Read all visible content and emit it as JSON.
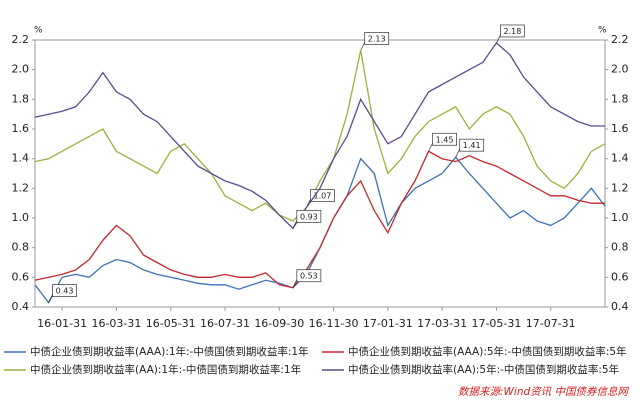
{
  "chart_data": {
    "type": "line",
    "y_unit": "%",
    "categories": [
      null,
      null,
      "16-01-31",
      null,
      null,
      null,
      "16-03-31",
      null,
      null,
      null,
      "16-05-31",
      null,
      null,
      null,
      "16-07-31",
      null,
      null,
      null,
      "16-09-30",
      null,
      null,
      null,
      "16-11-30",
      null,
      null,
      null,
      "17-01-31",
      null,
      null,
      null,
      "17-03-31",
      null,
      null,
      null,
      "17-05-31",
      null,
      null,
      null,
      "17-07-31",
      null,
      null,
      null,
      null
    ],
    "ylim": [
      0.4,
      2.2
    ],
    "yticks": [
      0.4,
      0.6,
      0.8,
      1.0,
      1.2,
      1.4,
      1.6,
      1.8,
      2.0,
      2.2
    ],
    "series": [
      {
        "name": "中债企业债到期收益率(AAA):1年:-中债国债到期收益率:1年",
        "color": "#3d72b4",
        "values": [
          0.55,
          0.43,
          0.6,
          0.62,
          0.6,
          0.68,
          0.72,
          0.7,
          0.65,
          0.62,
          0.6,
          0.58,
          0.56,
          0.55,
          0.55,
          0.52,
          0.55,
          0.58,
          0.56,
          0.53,
          0.62,
          0.8,
          1.0,
          1.15,
          1.4,
          1.3,
          0.95,
          1.1,
          1.2,
          1.25,
          1.3,
          1.41,
          1.3,
          1.2,
          1.1,
          1.0,
          1.05,
          0.98,
          0.95,
          1.0,
          1.1,
          1.2,
          1.08
        ],
        "value_labels": [
          null,
          "0.43",
          null,
          null,
          null,
          null,
          null,
          null,
          null,
          null,
          null,
          null,
          null,
          null,
          null,
          null,
          null,
          null,
          null,
          null,
          null,
          null,
          null,
          null,
          null,
          null,
          null,
          null,
          null,
          null,
          null,
          "1.41",
          null,
          null,
          null,
          null,
          null,
          null,
          null,
          null,
          null,
          null,
          null
        ]
      },
      {
        "name": "中债企业债到期收益率(AAA):5年:-中债国债到期收益率:5年",
        "color": "#c3282e",
        "values": [
          0.58,
          0.6,
          0.62,
          0.65,
          0.72,
          0.85,
          0.95,
          0.88,
          0.75,
          0.7,
          0.65,
          0.62,
          0.6,
          0.6,
          0.62,
          0.6,
          0.6,
          0.63,
          0.55,
          0.53,
          0.65,
          0.8,
          1.0,
          1.15,
          1.25,
          1.05,
          0.9,
          1.1,
          1.25,
          1.45,
          1.4,
          1.38,
          1.42,
          1.38,
          1.35,
          1.3,
          1.25,
          1.2,
          1.15,
          1.15,
          1.12,
          1.1,
          1.1
        ],
        "value_labels": [
          null,
          null,
          null,
          null,
          null,
          null,
          null,
          null,
          null,
          null,
          null,
          null,
          null,
          null,
          null,
          null,
          null,
          null,
          null,
          "0.53",
          null,
          null,
          null,
          null,
          null,
          null,
          null,
          null,
          null,
          "1.45",
          null,
          null,
          null,
          null,
          null,
          null,
          null,
          null,
          null,
          null,
          null,
          null,
          null
        ]
      },
      {
        "name": "中债企业债到期收益率(AA):1年:-中债国债到期收益率:1年",
        "color": "#9bb13c",
        "values": [
          1.38,
          1.4,
          1.45,
          1.5,
          1.55,
          1.6,
          1.45,
          1.4,
          1.35,
          1.3,
          1.45,
          1.5,
          1.4,
          1.3,
          1.15,
          1.1,
          1.05,
          1.1,
          1.02,
          0.98,
          1.07,
          1.25,
          1.4,
          1.7,
          2.13,
          1.6,
          1.3,
          1.4,
          1.55,
          1.65,
          1.7,
          1.75,
          1.6,
          1.7,
          1.75,
          1.7,
          1.55,
          1.35,
          1.25,
          1.2,
          1.3,
          1.45,
          1.5
        ],
        "value_labels": [
          null,
          null,
          null,
          null,
          null,
          null,
          null,
          null,
          null,
          null,
          null,
          null,
          null,
          null,
          null,
          null,
          null,
          null,
          null,
          null,
          "1.07",
          null,
          null,
          null,
          "2.13",
          null,
          null,
          null,
          null,
          null,
          null,
          null,
          null,
          null,
          null,
          null,
          null,
          null,
          null,
          null,
          null,
          null,
          null
        ]
      },
      {
        "name": "中债企业债到期收益率(AA):5年:-中债国债到期收益率:5年",
        "color": "#5b4b8e",
        "values": [
          1.68,
          1.7,
          1.72,
          1.75,
          1.85,
          1.98,
          1.85,
          1.8,
          1.7,
          1.65,
          1.55,
          1.45,
          1.35,
          1.3,
          1.25,
          1.22,
          1.18,
          1.12,
          1.02,
          0.93,
          1.07,
          1.2,
          1.4,
          1.55,
          1.8,
          1.65,
          1.5,
          1.55,
          1.7,
          1.85,
          1.9,
          1.95,
          2.0,
          2.05,
          2.18,
          2.1,
          1.95,
          1.85,
          1.75,
          1.7,
          1.65,
          1.62,
          1.62
        ],
        "value_labels": [
          null,
          null,
          null,
          null,
          null,
          null,
          null,
          null,
          null,
          null,
          null,
          null,
          null,
          null,
          null,
          null,
          null,
          null,
          null,
          "0.93",
          null,
          null,
          null,
          null,
          null,
          null,
          null,
          null,
          null,
          null,
          null,
          null,
          null,
          null,
          "2.18",
          null,
          null,
          null,
          null,
          null,
          null,
          null,
          null
        ]
      }
    ],
    "source": "数据来源:Wind资讯 中国债券信息网"
  }
}
